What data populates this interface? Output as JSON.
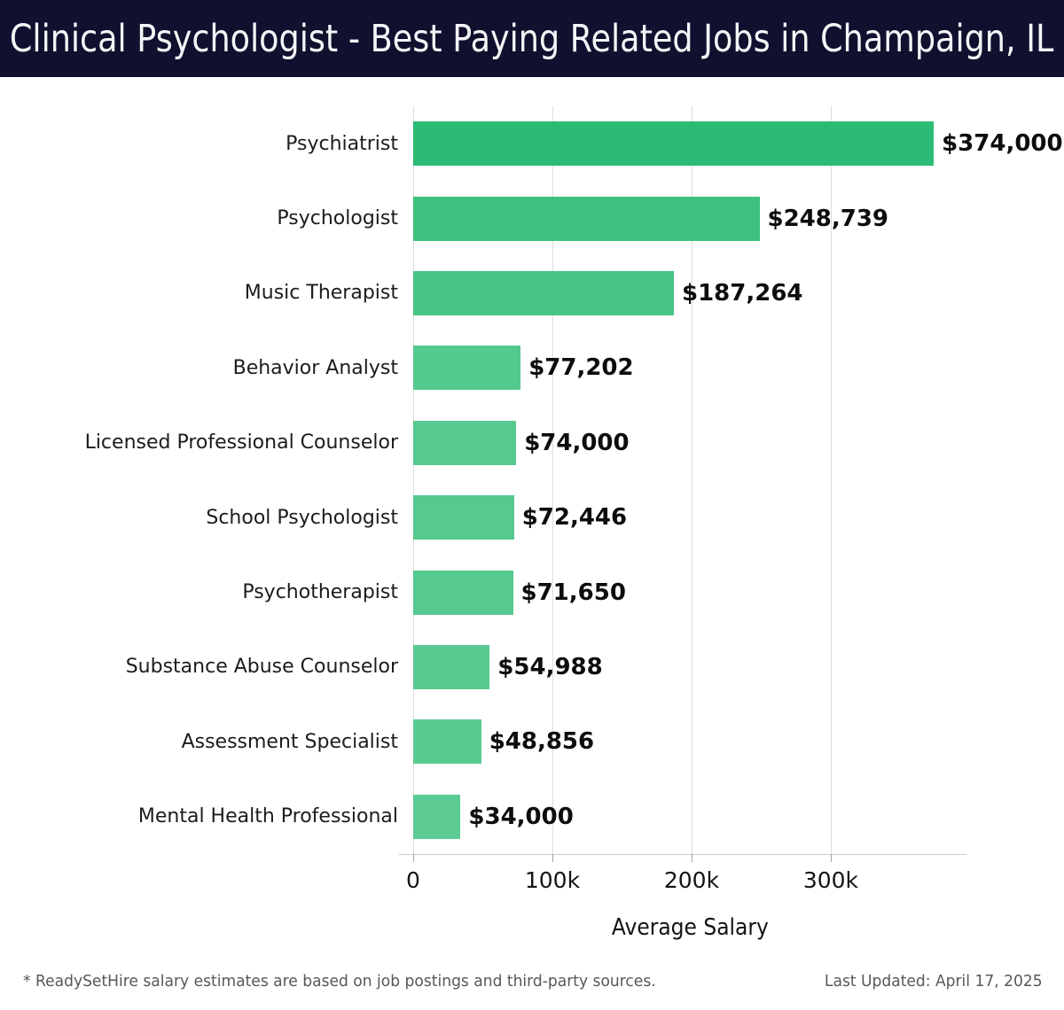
{
  "header": {
    "title": "Clinical Psychologist - Best Paying Related Jobs in Champaign, IL",
    "bg_color": "#10102f"
  },
  "chart_data": {
    "type": "bar",
    "orientation": "horizontal",
    "title": "Clinical Psychologist - Best Paying Related Jobs in Champaign, IL",
    "xlabel": "Average Salary",
    "ylabel": "",
    "xlim": [
      0,
      397500
    ],
    "grid": true,
    "gridline_color": "#dcdcdc",
    "x_ticks": [
      {
        "value": 0,
        "label": "0"
      },
      {
        "value": 100000,
        "label": "100k"
      },
      {
        "value": 200000,
        "label": "200k"
      },
      {
        "value": 300000,
        "label": "300k"
      }
    ],
    "bars": [
      {
        "category": "Psychiatrist",
        "value": 374000,
        "label": "$374,000",
        "color": "#2cbb74"
      },
      {
        "category": "Psychologist",
        "value": 248739,
        "label": "$248,739",
        "color": "#3dc17f"
      },
      {
        "category": "Music Therapist",
        "value": 187264,
        "label": "$187,264",
        "color": "#46c485"
      },
      {
        "category": "Behavior Analyst",
        "value": 77202,
        "label": "$77,202",
        "color": "#54c98e"
      },
      {
        "category": "Licensed Professional Counselor",
        "value": 74000,
        "label": "$74,000",
        "color": "#55c98f"
      },
      {
        "category": "School Psychologist",
        "value": 72446,
        "label": "$72,446",
        "color": "#55c98f"
      },
      {
        "category": "Psychotherapist",
        "value": 71650,
        "label": "$71,650",
        "color": "#56c990"
      },
      {
        "category": "Substance Abuse Counselor",
        "value": 54988,
        "label": "$54,988",
        "color": "#58ca91"
      },
      {
        "category": "Assessment Specialist",
        "value": 48856,
        "label": "$48,856",
        "color": "#59cb92"
      },
      {
        "category": "Mental Health Professional",
        "value": 34000,
        "label": "$34,000",
        "color": "#5bcb93"
      }
    ]
  },
  "footer": {
    "note": "* ReadySetHire salary estimates are based on job postings and third-party sources.",
    "updated": "Last Updated: April 17, 2025"
  }
}
